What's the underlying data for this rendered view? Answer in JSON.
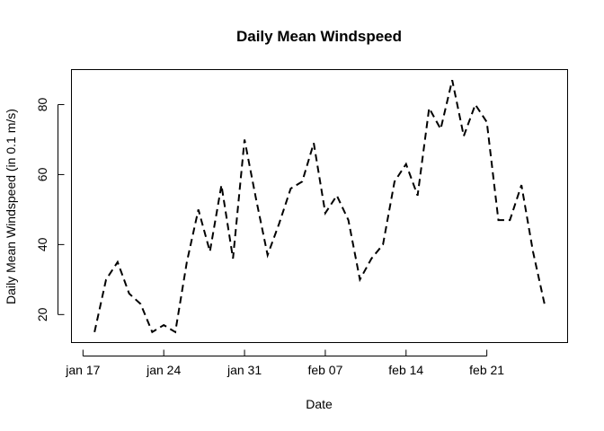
{
  "chart_data": {
    "type": "line",
    "title": "Daily Mean Windspeed",
    "xlabel": "Date",
    "ylabel": "Daily Mean Windspeed (in 0.1 m/s)",
    "x_ticks": [
      {
        "date": "2024-01-17",
        "label": "jan 17"
      },
      {
        "date": "2024-01-24",
        "label": "jan 24"
      },
      {
        "date": "2024-01-31",
        "label": "jan 31"
      },
      {
        "date": "2024-02-07",
        "label": "feb 07"
      },
      {
        "date": "2024-02-14",
        "label": "feb 14"
      },
      {
        "date": "2024-02-21",
        "label": "feb 21"
      }
    ],
    "y_ticks": [
      20,
      40,
      60,
      80
    ],
    "xlim": [
      "2024-01-16",
      "2024-02-28"
    ],
    "ylim": [
      12,
      90
    ],
    "line_style": "dashed",
    "line_color": "#000000",
    "grid": false,
    "series": [
      {
        "x": [
          "2024-01-18",
          "2024-01-19",
          "2024-01-20",
          "2024-01-21",
          "2024-01-22",
          "2024-01-23",
          "2024-01-24",
          "2024-01-25",
          "2024-01-26",
          "2024-01-27",
          "2024-01-28",
          "2024-01-29",
          "2024-01-30",
          "2024-01-31",
          "2024-02-01",
          "2024-02-02",
          "2024-02-03",
          "2024-02-04",
          "2024-02-05",
          "2024-02-06",
          "2024-02-07",
          "2024-02-08",
          "2024-02-09",
          "2024-02-10",
          "2024-02-11",
          "2024-02-12",
          "2024-02-13",
          "2024-02-14",
          "2024-02-15",
          "2024-02-16",
          "2024-02-17",
          "2024-02-18",
          "2024-02-19",
          "2024-02-20",
          "2024-02-21",
          "2024-02-22",
          "2024-02-23",
          "2024-02-24",
          "2024-02-25",
          "2024-02-26"
        ],
        "values": [
          15,
          30,
          35,
          26,
          23,
          15,
          17,
          15,
          35,
          50,
          38,
          57,
          36,
          70,
          53,
          37,
          46,
          56,
          58,
          69,
          49,
          54,
          47,
          30,
          36,
          40,
          58,
          63,
          54,
          79,
          73,
          87,
          71,
          80,
          75,
          47,
          47,
          57,
          38,
          23
        ]
      }
    ]
  }
}
